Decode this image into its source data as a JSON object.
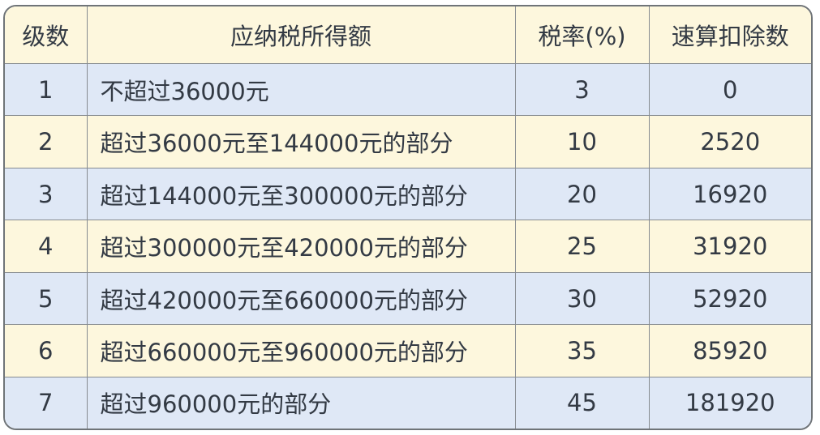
{
  "table": {
    "headers": [
      "级数",
      "应纳税所得额",
      "税率(%)",
      "速算扣除数"
    ],
    "rows": [
      {
        "level": "1",
        "range": "不超过36000元",
        "rate": "3",
        "deduction": "0"
      },
      {
        "level": "2",
        "range": "超过36000元至144000元的部分",
        "rate": "10",
        "deduction": "2520"
      },
      {
        "level": "3",
        "range": "超过144000元至300000元的部分",
        "rate": "20",
        "deduction": "16920"
      },
      {
        "level": "4",
        "range": "超过300000元至420000元的部分",
        "rate": "25",
        "deduction": "31920"
      },
      {
        "level": "5",
        "range": "超过420000元至660000元的部分",
        "rate": "30",
        "deduction": "52920"
      },
      {
        "level": "6",
        "range": "超过660000元至960000元的部分",
        "rate": "35",
        "deduction": "85920"
      },
      {
        "level": "7",
        "range": "超过960000元的部分",
        "rate": "45",
        "deduction": "181920"
      }
    ]
  },
  "colors": {
    "header_bg": "#fdf7dd",
    "odd_row_bg": "#dfe8f6",
    "even_row_bg": "#fdf7dd",
    "border": "#6f7478"
  }
}
